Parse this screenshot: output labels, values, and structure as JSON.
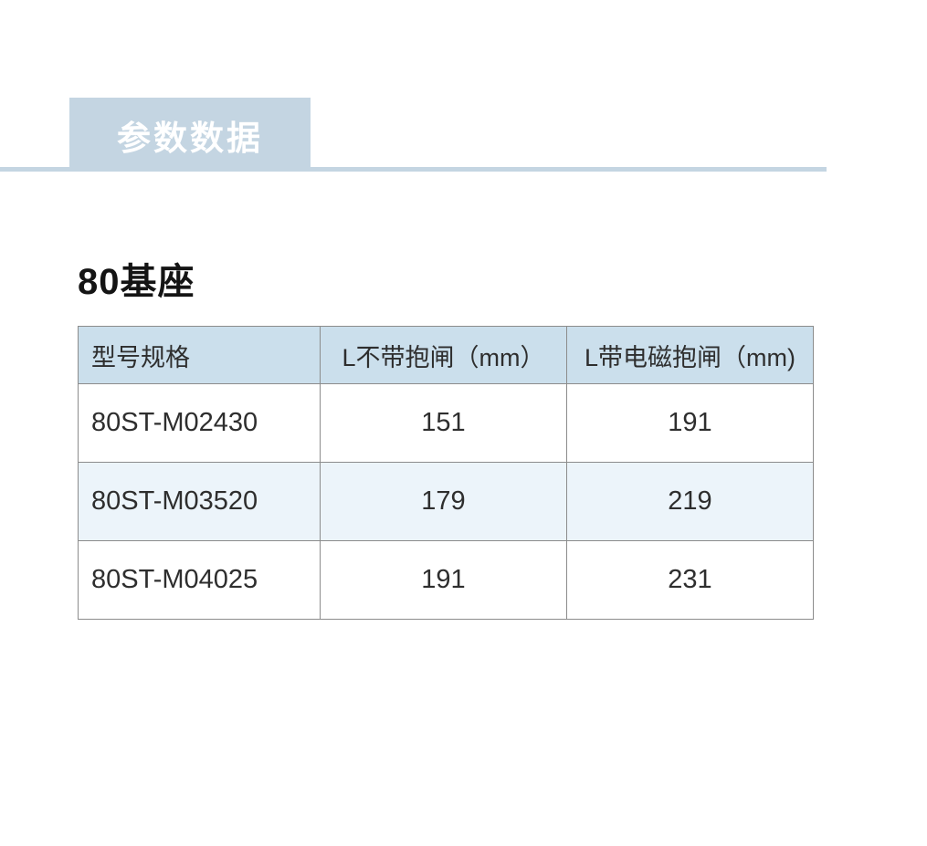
{
  "section": {
    "badge_label": "参数数据"
  },
  "content": {
    "title": "80基座"
  },
  "table": {
    "headers": {
      "model": "型号规格",
      "l_without_brake": "L不带抱闸（mm）",
      "l_with_brake": "L带电磁抱闸（mm)"
    },
    "rows": [
      {
        "model": "80ST-M02430",
        "l_without_brake": "151",
        "l_with_brake": "191"
      },
      {
        "model": "80ST-M03520",
        "l_without_brake": "179",
        "l_with_brake": "219"
      },
      {
        "model": "80ST-M04025",
        "l_without_brake": "191",
        "l_with_brake": "231"
      }
    ]
  },
  "chart_data": {
    "type": "table",
    "title": "80基座",
    "categories": [
      "80ST-M02430",
      "80ST-M03520",
      "80ST-M04025"
    ],
    "series": [
      {
        "name": "L不带抱闸（mm）",
        "values": [
          151,
          179,
          191
        ]
      },
      {
        "name": "L带电磁抱闸（mm)",
        "values": [
          191,
          219,
          231
        ]
      }
    ]
  },
  "colors": {
    "accent": "#c4d5e2",
    "table_header_bg": "#cbdfec",
    "row_stripe_bg": "#ecf4fa",
    "table_border": "#8c8c8c",
    "badge_text": "#ffffff"
  }
}
